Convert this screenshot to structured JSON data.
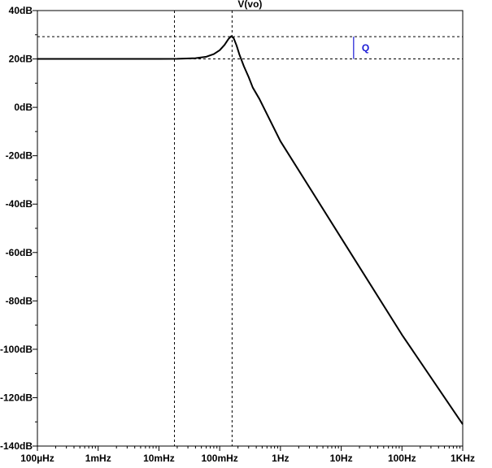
{
  "chart_data": {
    "type": "line",
    "title": "V(vo)",
    "xscale": "log",
    "x_range_hz": [
      0.0001,
      1000
    ],
    "y_range_db": [
      -140,
      40
    ],
    "y_ticks": [
      "40dB",
      "20dB",
      "0dB",
      "-20dB",
      "-40dB",
      "-60dB",
      "-80dB",
      "-100dB",
      "-120dB",
      "-140dB"
    ],
    "y_tick_values": [
      40,
      20,
      0,
      -20,
      -40,
      -60,
      -80,
      -100,
      -120,
      -140
    ],
    "x_ticks": [
      "100µHz",
      "1mHz",
      "10mHz",
      "100mHz",
      "1Hz",
      "10Hz",
      "100Hz",
      "1KHz"
    ],
    "x_tick_values": [
      0.0001,
      0.001,
      0.01,
      0.1,
      1,
      10,
      100,
      1000
    ],
    "grid": false,
    "cursor_lines": {
      "vertical_hz": [
        0.018,
        0.16
      ],
      "horizontal_db": [
        29.2,
        20
      ]
    },
    "q_marker": {
      "label": "Q",
      "x_hz": 16,
      "from_db": 20,
      "to_db": 29.2,
      "color": "#1a1ad6"
    },
    "series": [
      {
        "color": "#000000",
        "points": [
          [
            0.0001,
            20
          ],
          [
            0.001,
            20
          ],
          [
            0.01,
            20
          ],
          [
            0.02,
            20.05
          ],
          [
            0.04,
            20.3
          ],
          [
            0.06,
            20.9
          ],
          [
            0.08,
            22.0
          ],
          [
            0.1,
            23.6
          ],
          [
            0.12,
            25.8
          ],
          [
            0.14,
            28.3
          ],
          [
            0.155,
            29.4
          ],
          [
            0.17,
            28.6
          ],
          [
            0.19,
            25.5
          ],
          [
            0.21,
            22.0
          ],
          [
            0.25,
            17.0
          ],
          [
            0.3,
            12.5
          ],
          [
            0.35,
            8.2
          ],
          [
            0.45,
            3.5
          ],
          [
            1,
            -14
          ],
          [
            10,
            -54
          ],
          [
            100,
            -94
          ],
          [
            1000,
            -131
          ]
        ]
      }
    ]
  }
}
